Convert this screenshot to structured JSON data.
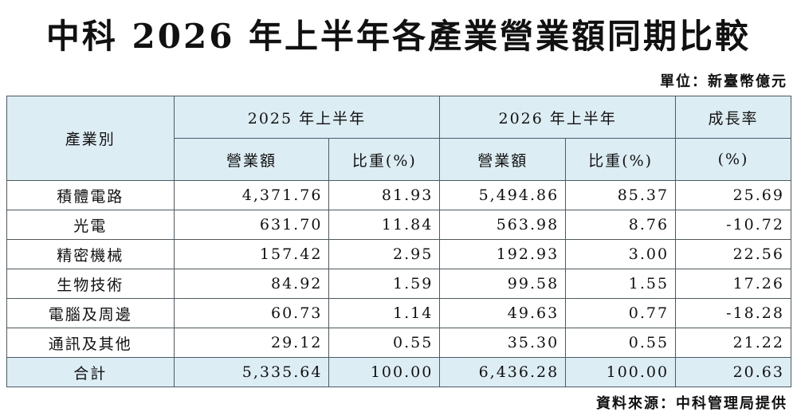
{
  "title": "中科 2026 年上半年各產業營業額同期比較",
  "unit": "單位：新臺幣億元",
  "table": {
    "header": {
      "industry": "產業別",
      "period_2025": "2025 年上半年",
      "period_2026": "2026 年上半年",
      "growth": "成長率",
      "sub": [
        "營業額",
        "比重(%)",
        "營業額",
        "比重(%)",
        "(%)"
      ]
    },
    "rows": [
      [
        "積體電路",
        "4,371.76",
        "81.93",
        "5,494.86",
        "85.37",
        "25.69"
      ],
      [
        "光電",
        "631.70",
        "11.84",
        "563.98",
        "8.76",
        "-10.72"
      ],
      [
        "精密機械",
        "157.42",
        "2.95",
        "192.93",
        "3.00",
        "22.56"
      ],
      [
        "生物技術",
        "84.92",
        "1.59",
        "99.58",
        "1.55",
        "17.26"
      ],
      [
        "電腦及周邊",
        "60.73",
        "1.14",
        "49.63",
        "0.77",
        "-18.28"
      ],
      [
        "通訊及其他",
        "29.12",
        "0.55",
        "35.30",
        "0.55",
        "21.22"
      ],
      [
        "合計",
        "5,335.64",
        "100.00",
        "6,436.28",
        "100.00",
        "20.63"
      ]
    ]
  },
  "source": "資料來源：中科管理局提供"
}
